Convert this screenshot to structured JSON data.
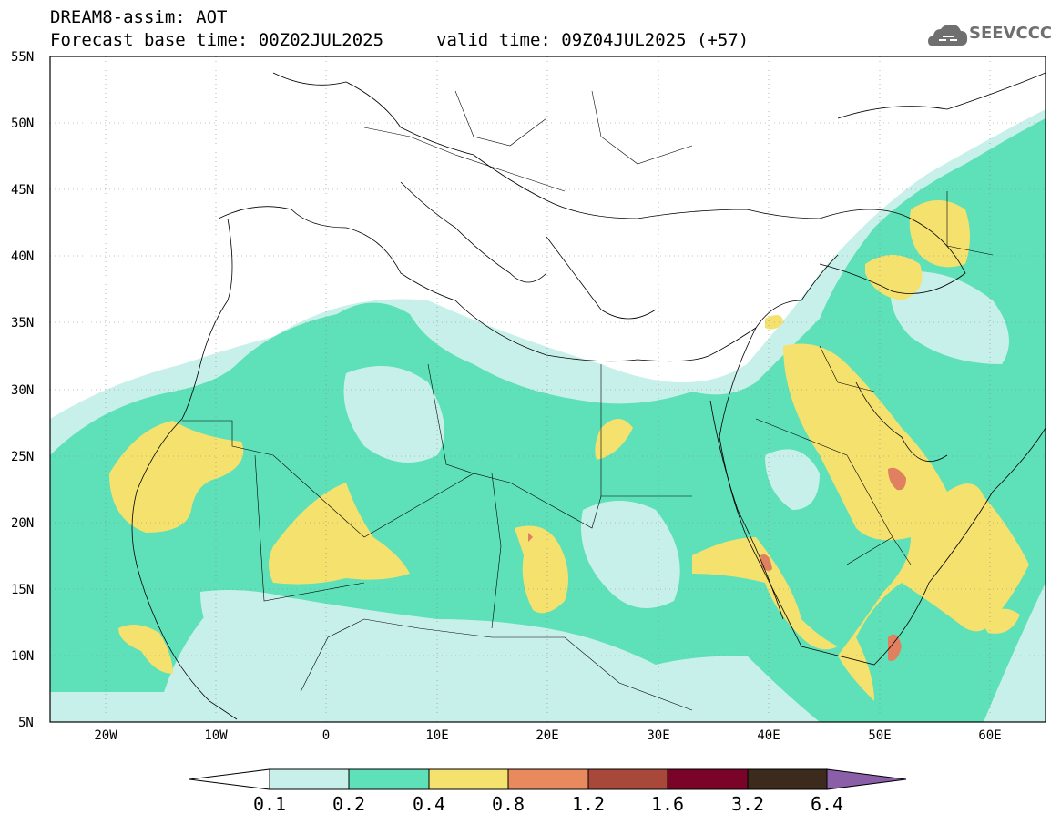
{
  "header": {
    "line1": "DREAM8-assim: AOT",
    "line2_left": "Forecast base time: 00Z02JUL2025",
    "line2_right": "valid time: 09Z04JUL2025 (+57)"
  },
  "logo": {
    "text": "SEEVCCC",
    "icon": "cloud-logo-icon"
  },
  "map": {
    "projection": "lat-lon",
    "lon_range": [
      -25,
      65
    ],
    "lat_range": [
      5,
      55
    ],
    "lat_labels": [
      "55N",
      "50N",
      "45N",
      "40N",
      "35N",
      "30N",
      "25N",
      "20N",
      "15N",
      "10N",
      "5N"
    ],
    "lon_labels": [
      "20W",
      "10W",
      "0",
      "10E",
      "20E",
      "30E",
      "40E",
      "50E",
      "60E"
    ]
  },
  "colorbar": {
    "labels": [
      "0.1",
      "0.2",
      "0.4",
      "0.8",
      "1.2",
      "1.6",
      "3.2",
      "6.4"
    ],
    "colors": [
      "#ffffff",
      "#c8f0ea",
      "#5ee0b8",
      "#f5e16e",
      "#e88a5e",
      "#a8483a",
      "#7a0428",
      "#3c2a1c",
      "#8a5fa8"
    ]
  },
  "colors": {
    "very_light": "#c8f0ea",
    "light": "#5ee0b8",
    "medium": "#f5e16e",
    "high": "#e88a5e",
    "very_high": "#c0604a"
  }
}
